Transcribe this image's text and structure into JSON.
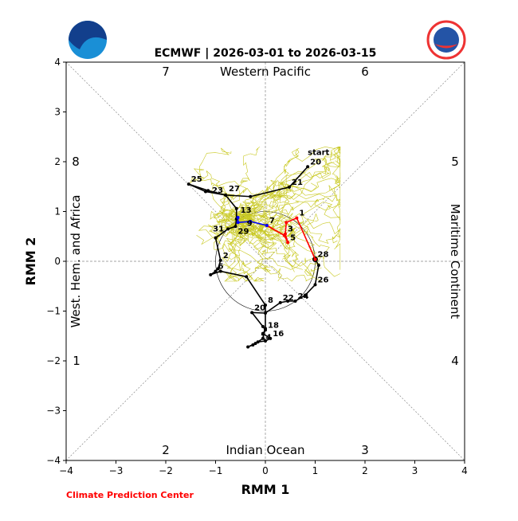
{
  "chart_data": {
    "type": "line",
    "title": "ECMWF | 2026-03-01 to 2026-03-15",
    "xlabel": "RMM 1",
    "ylabel": "RMM 2",
    "xlim": [
      -4,
      4
    ],
    "ylim": [
      -4,
      4
    ],
    "xticks": [
      "−4",
      "−3",
      "−2",
      "−1",
      "0",
      "1",
      "2",
      "3",
      "4"
    ],
    "yticks": [
      "−4",
      "−3",
      "−2",
      "−1",
      "0",
      "1",
      "2",
      "3",
      "4"
    ],
    "regions": {
      "top": "Western Pacific",
      "bottom": "Indian Ocean",
      "left": "West. Hem. and Africa",
      "right": "Maritime Continent"
    },
    "phases": [
      "1",
      "2",
      "3",
      "4",
      "5",
      "6",
      "7",
      "8"
    ],
    "start_label": "start",
    "series": [
      {
        "name": "observed",
        "color": "#000000",
        "points": [
          [
            0.85,
            1.9,
            "20"
          ],
          [
            0.48,
            1.49,
            "21"
          ],
          [
            -0.3,
            1.3,
            ""
          ],
          [
            -0.8,
            1.33,
            "23"
          ],
          [
            -1.15,
            1.42,
            ""
          ],
          [
            -1.54,
            1.55,
            "25"
          ],
          [
            -1.2,
            1.4,
            ""
          ],
          [
            -0.8,
            1.33,
            "27"
          ],
          [
            -0.58,
            1.06,
            ""
          ],
          [
            -0.58,
            0.85,
            ""
          ],
          [
            -0.6,
            0.7,
            "29"
          ],
          [
            -0.75,
            0.65,
            "31"
          ],
          [
            -1.0,
            0.47,
            ""
          ],
          [
            -0.9,
            0.02,
            "2"
          ],
          [
            -0.95,
            -0.15,
            ""
          ],
          [
            -1.0,
            -0.2,
            "6"
          ],
          [
            -1.1,
            -0.27,
            ""
          ],
          [
            -0.9,
            -0.2,
            ""
          ],
          [
            -0.38,
            -0.31,
            ""
          ],
          [
            0.0,
            -0.88,
            "8"
          ],
          [
            0.0,
            -1.35,
            ""
          ],
          [
            -0.05,
            -1.55,
            ""
          ],
          [
            -0.2,
            -1.65,
            ""
          ],
          [
            -0.35,
            -1.72,
            ""
          ],
          [
            -0.25,
            -1.68,
            ""
          ],
          [
            -0.15,
            -1.62,
            "14"
          ],
          [
            0.0,
            -1.6,
            ""
          ],
          [
            0.1,
            -1.55,
            "16"
          ],
          [
            -0.05,
            -1.45,
            ""
          ],
          [
            0.0,
            -1.38,
            "18"
          ],
          [
            -0.05,
            -1.31,
            ""
          ],
          [
            -0.27,
            -1.03,
            "20"
          ],
          [
            0.0,
            -1.04,
            ""
          ],
          [
            0.3,
            -0.83,
            "22"
          ],
          [
            0.45,
            -0.8,
            ""
          ],
          [
            0.6,
            -0.8,
            "24"
          ],
          [
            0.8,
            -0.68,
            ""
          ],
          [
            1.0,
            -0.47,
            "26"
          ],
          [
            1.07,
            -0.08,
            ""
          ],
          [
            1.0,
            0.04,
            "28"
          ]
        ]
      },
      {
        "name": "forecast-week1",
        "color": "#ff0000",
        "points": [
          [
            1.0,
            0.04,
            ""
          ],
          [
            0.63,
            0.87,
            "1"
          ],
          [
            0.42,
            0.78,
            ""
          ],
          [
            0.4,
            0.55,
            "3"
          ],
          [
            0.45,
            0.38,
            "5"
          ],
          [
            0.38,
            0.52,
            ""
          ],
          [
            0.03,
            0.72,
            "7"
          ]
        ]
      },
      {
        "name": "forecast-week2",
        "color": "#0000ff",
        "points": [
          [
            0.03,
            0.72,
            ""
          ],
          [
            -0.3,
            0.8,
            ""
          ],
          [
            -0.55,
            0.78,
            "9"
          ],
          [
            -0.55,
            0.88,
            "13"
          ]
        ]
      }
    ],
    "ensemble_color": "#c8c820",
    "ensemble_members": 51
  },
  "footer": {
    "credit": "Climate Prediction Center"
  },
  "logos": {
    "left": "NOAA",
    "right": "NATIONAL WEATHER SERVICE"
  }
}
